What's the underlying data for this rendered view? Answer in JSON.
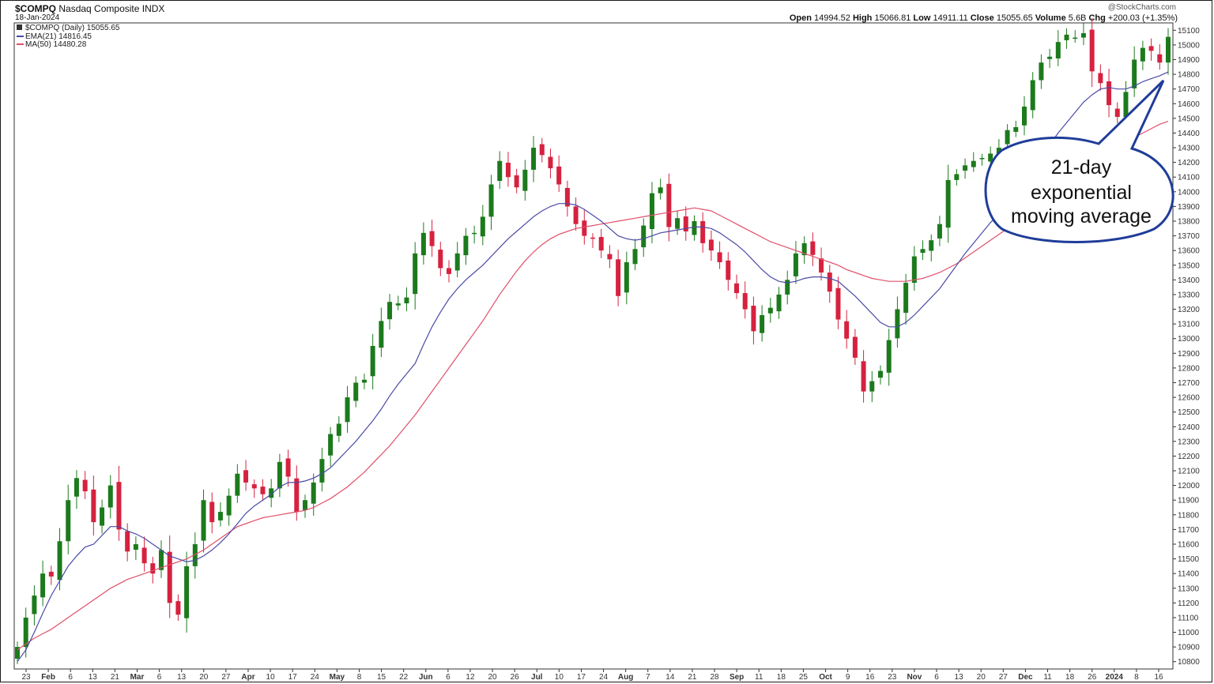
{
  "header": {
    "symbol": "$COMPQ",
    "name": "Nasdaq Composite INDX",
    "date": "18-Jan-2024",
    "quote": {
      "open_label": "Open",
      "open": "14994.52",
      "high_label": "High",
      "high": "15066.81",
      "low_label": "Low",
      "low": "14911.11",
      "close_label": "Close",
      "close": "15055.65",
      "volume_label": "Volume",
      "volume": "5.6B",
      "chg_label": "Chg",
      "chg": "+200.03 (+1.35%)"
    },
    "watermark": "@StockCharts.com"
  },
  "legend": {
    "price": "$COMPQ (Daily) 15055.65",
    "ema": "EMA(21) 14816.45",
    "ma": "MA(50) 14480.28"
  },
  "callout": {
    "lines": [
      "21-day",
      "exponential",
      "moving average"
    ]
  },
  "colors": {
    "up": "#1c7a1c",
    "down": "#d6213f",
    "ema": "#4a4aa6",
    "ma": "#e0506a",
    "callout_border": "#1f3d99"
  },
  "chart_data": {
    "type": "candlestick",
    "title": "$COMPQ (Daily)",
    "ylim": [
      10750,
      15150
    ],
    "y_ticks": [
      10800,
      10900,
      11000,
      11100,
      11200,
      11300,
      11400,
      11500,
      11600,
      11700,
      11800,
      11900,
      12000,
      12100,
      12200,
      12300,
      12400,
      12500,
      12600,
      12700,
      12800,
      12900,
      13000,
      13100,
      13200,
      13300,
      13400,
      13500,
      13600,
      13700,
      13800,
      13900,
      14000,
      14100,
      14200,
      14300,
      14400,
      14500,
      14600,
      14700,
      14800,
      14900,
      15000,
      15100
    ],
    "x_labels": [
      "23",
      "Feb",
      "6",
      "13",
      "21",
      "Mar",
      "6",
      "13",
      "20",
      "27",
      "Apr",
      "10",
      "17",
      "24",
      "May",
      "8",
      "15",
      "22",
      "Jun",
      "6",
      "12",
      "20",
      "26",
      "Jul",
      "10",
      "17",
      "24",
      "Aug",
      "7",
      "14",
      "21",
      "28",
      "Sep",
      "11",
      "18",
      "25",
      "Oct",
      "9",
      "16",
      "23",
      "Nov",
      "6",
      "13",
      "20",
      "27",
      "Dec",
      "11",
      "18",
      "26",
      "2024",
      "8",
      "16"
    ],
    "series": [
      {
        "name": "$COMPQ",
        "kind": "close",
        "values": [
          10900,
          11100,
          11250,
          11400,
          11380,
          11620,
          11900,
          12050,
          11960,
          11750,
          11850,
          12000,
          11700,
          11550,
          11600,
          11470,
          11400,
          11560,
          11200,
          11120,
          11450,
          11600,
          11900,
          11750,
          11820,
          11930,
          12080,
          12020,
          11980,
          11940,
          11980,
          12160,
          12060,
          11820,
          11900,
          12020,
          12180,
          12350,
          12420,
          12600,
          12700,
          12720,
          12950,
          13120,
          13250,
          13240,
          13280,
          13580,
          13720,
          13630,
          13480,
          13440,
          13580,
          13700,
          13720,
          13830,
          14050,
          14210,
          14100,
          14030,
          14150,
          14300,
          14250,
          14160,
          14050,
          13900,
          13780,
          13700,
          13680,
          13600,
          13540,
          13290,
          13520,
          13610,
          13770,
          13990,
          14030,
          13760,
          13820,
          13730,
          13800,
          13650,
          13600,
          13520,
          13400,
          13310,
          13200,
          13050,
          13160,
          13210,
          13300,
          13400,
          13580,
          13650,
          13570,
          13450,
          13320,
          13130,
          13000,
          12870,
          12640,
          12710,
          12780,
          12990,
          13200,
          13380,
          13560,
          13610,
          13670,
          13780,
          14080,
          14120,
          14180,
          14210,
          14230,
          14260,
          14300,
          14420,
          14440,
          14580,
          14760,
          14880,
          14920,
          15020,
          15070,
          15050,
          15080,
          14820,
          14740,
          14590,
          14510,
          14680,
          14900,
          14980,
          14960,
          14880,
          15055
        ]
      },
      {
        "name": "EMA(21)",
        "kind": "line",
        "values": [
          10800,
          10880,
          11000,
          11130,
          11250,
          11350,
          11450,
          11520,
          11580,
          11600,
          11660,
          11720,
          11720,
          11690,
          11670,
          11640,
          11600,
          11560,
          11520,
          11500,
          11480,
          11490,
          11520,
          11560,
          11610,
          11670,
          11740,
          11810,
          11860,
          11900,
          11940,
          11990,
          12020,
          12020,
          12030,
          12050,
          12080,
          12120,
          12180,
          12240,
          12300,
          12370,
          12440,
          12520,
          12610,
          12690,
          12760,
          12830,
          12960,
          13080,
          13180,
          13270,
          13340,
          13400,
          13450,
          13500,
          13560,
          13620,
          13680,
          13730,
          13780,
          13830,
          13870,
          13900,
          13920,
          13920,
          13910,
          13880,
          13840,
          13800,
          13750,
          13700,
          13680,
          13670,
          13680,
          13700,
          13720,
          13730,
          13740,
          13750,
          13760,
          13760,
          13750,
          13720,
          13680,
          13640,
          13590,
          13530,
          13470,
          13420,
          13390,
          13380,
          13390,
          13410,
          13420,
          13420,
          13410,
          13390,
          13340,
          13290,
          13230,
          13170,
          13110,
          13080,
          13080,
          13110,
          13160,
          13220,
          13280,
          13340,
          13420,
          13500,
          13580,
          13650,
          13720,
          13790,
          13850,
          13920,
          13990,
          14070,
          14150,
          14240,
          14320,
          14400,
          14470,
          14540,
          14610,
          14660,
          14700,
          14710,
          14700,
          14700,
          14720,
          14750,
          14770,
          14790,
          14816
        ]
      },
      {
        "name": "MA(50)",
        "kind": "line",
        "values": [
          10880,
          10920,
          10960,
          10990,
          11020,
          11060,
          11100,
          11140,
          11180,
          11220,
          11260,
          11300,
          11330,
          11360,
          11380,
          11400,
          11420,
          11440,
          11460,
          11480,
          11500,
          11530,
          11560,
          11600,
          11640,
          11680,
          11720,
          11740,
          11760,
          11780,
          11790,
          11800,
          11810,
          11820,
          11830,
          11850,
          11880,
          11910,
          11950,
          11990,
          12040,
          12090,
          12150,
          12210,
          12270,
          12340,
          12410,
          12480,
          12560,
          12640,
          12720,
          12800,
          12880,
          12960,
          13040,
          13120,
          13210,
          13300,
          13380,
          13460,
          13530,
          13590,
          13640,
          13680,
          13710,
          13730,
          13750,
          13760,
          13770,
          13780,
          13790,
          13800,
          13810,
          13820,
          13830,
          13840,
          13850,
          13860,
          13870,
          13880,
          13890,
          13880,
          13870,
          13840,
          13810,
          13780,
          13750,
          13720,
          13690,
          13660,
          13640,
          13620,
          13600,
          13580,
          13560,
          13540,
          13520,
          13500,
          13470,
          13450,
          13430,
          13410,
          13400,
          13390,
          13390,
          13390,
          13400,
          13410,
          13430,
          13450,
          13480,
          13510,
          13550,
          13590,
          13630,
          13670,
          13710,
          13750,
          13800,
          13850,
          13900,
          13960,
          14020,
          14080,
          14130,
          14180,
          14230,
          14270,
          14300,
          14320,
          14330,
          14350,
          14370,
          14400,
          14430,
          14460,
          14480
        ]
      }
    ],
    "grid": false,
    "legend_position": "top-left"
  }
}
